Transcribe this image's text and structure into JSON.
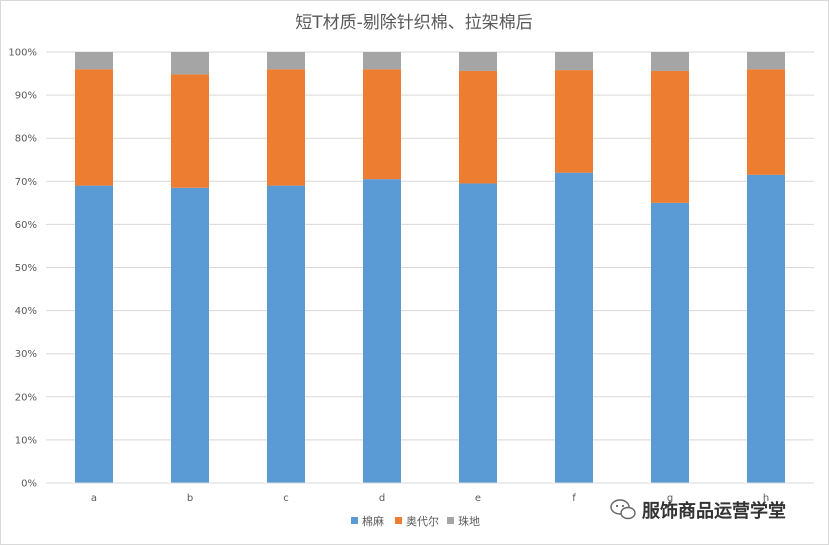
{
  "chart_data": {
    "type": "bar",
    "stacked": true,
    "percent": true,
    "title": "短T材质-剔除针织棉、拉架棉后",
    "categories": [
      "a",
      "b",
      "c",
      "d",
      "e",
      "f",
      "g",
      "h"
    ],
    "series": [
      {
        "name": "棉麻",
        "color": "#5B9BD5",
        "values": [
          69.0,
          68.5,
          69.0,
          70.5,
          69.5,
          72.0,
          65.0,
          71.5
        ]
      },
      {
        "name": "奥代尔",
        "color": "#ED7D31",
        "values": [
          27.0,
          26.3,
          27.0,
          25.5,
          26.1,
          23.8,
          30.6,
          24.5
        ]
      },
      {
        "name": "珠地",
        "color": "#A5A5A5",
        "values": [
          4.0,
          5.2,
          4.0,
          4.0,
          4.4,
          4.2,
          4.4,
          4.0
        ]
      }
    ],
    "y_ticks": [
      "0%",
      "10%",
      "20%",
      "30%",
      "40%",
      "50%",
      "60%",
      "70%",
      "80%",
      "90%",
      "100%"
    ],
    "ylim": [
      0,
      100
    ],
    "grid": true,
    "legend_position": "bottom"
  },
  "watermark": {
    "text": "服饰商品运营学堂",
    "icon": "wechat-icon"
  }
}
